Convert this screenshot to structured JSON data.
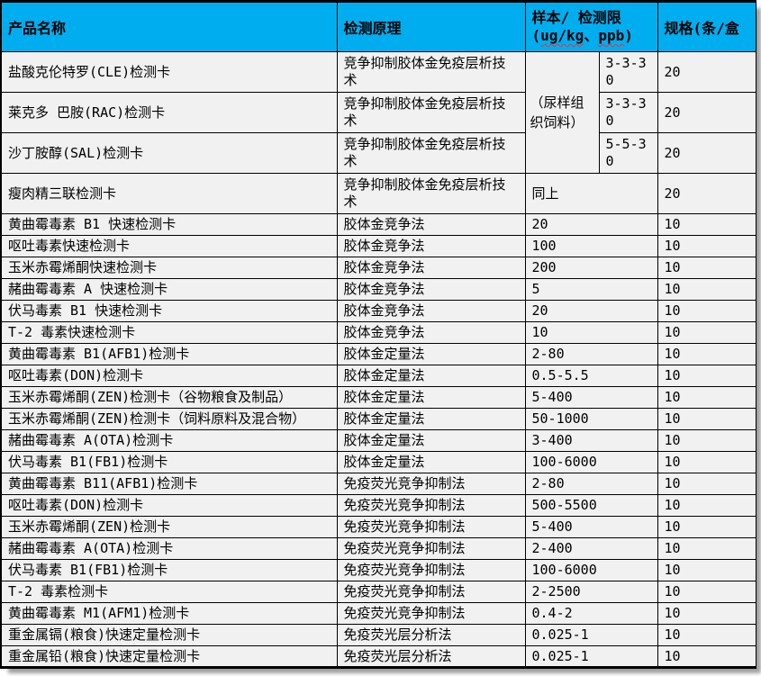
{
  "table": {
    "header": {
      "col1": "产品名称",
      "col2": "检测原理",
      "col3_line1": "样本/ 检测限",
      "col3_open": "(",
      "col3_unit1": "ug/kg",
      "col3_sep": "、",
      "col3_unit2": "ppb",
      "col3_close": ")",
      "col4": "规格(条/盒"
    },
    "colors": {
      "header_bg": "#00AEEF",
      "cell_bg": "#F1F1F1",
      "border": "#000000",
      "spellcheck_underline": "#FF2B2B"
    },
    "rows": [
      {
        "tall": true,
        "cells": [
          {
            "t": "盐酸克伦特罗(CLE)检测卡",
            "name": "product-name-cell"
          },
          {
            "t": "竞争抑制胶体金免疫层析技术",
            "name": "principle-cell"
          },
          {
            "t": "（尿样组织饲料）",
            "name": "sample-group-cell",
            "rowspan": 3
          },
          {
            "t": "3-3-30",
            "name": "limit-cell"
          },
          {
            "t": "20",
            "name": "spec-cell"
          }
        ]
      },
      {
        "tall": true,
        "cells": [
          {
            "t": "莱克多 巴胺(RAC)检测卡",
            "name": "product-name-cell"
          },
          {
            "t": "竞争抑制胶体金免疫层析技术",
            "name": "principle-cell"
          },
          {
            "t": "3-3-30",
            "name": "limit-cell"
          },
          {
            "t": "20",
            "name": "spec-cell"
          }
        ]
      },
      {
        "tall": true,
        "cells": [
          {
            "t": "沙丁胺醇(SAL)检测卡",
            "name": "product-name-cell"
          },
          {
            "t": "竞争抑制胶体金免疫层析技术",
            "name": "principle-cell"
          },
          {
            "t": "5-5-30",
            "name": "limit-cell"
          },
          {
            "t": "20",
            "name": "spec-cell"
          }
        ]
      },
      {
        "tall": true,
        "cells": [
          {
            "t": "瘦肉精三联检测卡",
            "name": "product-name-cell"
          },
          {
            "t": "竞争抑制胶体金免疫层析技术",
            "name": "principle-cell"
          },
          {
            "t": "同上",
            "name": "sample-cell",
            "colspan": 2
          },
          {
            "t": "20",
            "name": "spec-cell"
          }
        ]
      },
      {
        "cells": [
          {
            "t": "黄曲霉毒素 B1 快速检测卡",
            "name": "product-name-cell"
          },
          {
            "t": "胶体金竞争法",
            "name": "principle-cell"
          },
          {
            "t": "20",
            "name": "limit-cell",
            "colspan": 2
          },
          {
            "t": "10",
            "name": "spec-cell"
          }
        ]
      },
      {
        "cells": [
          {
            "t": "呕吐毒素快速检测卡",
            "name": "product-name-cell"
          },
          {
            "t": "胶体金竞争法",
            "name": "principle-cell"
          },
          {
            "t": "100",
            "name": "limit-cell",
            "colspan": 2
          },
          {
            "t": "10",
            "name": "spec-cell"
          }
        ]
      },
      {
        "cells": [
          {
            "t": "玉米赤霉烯酮快速检测卡",
            "name": "product-name-cell"
          },
          {
            "t": "胶体金竞争法",
            "name": "principle-cell"
          },
          {
            "t": "200",
            "name": "limit-cell",
            "colspan": 2
          },
          {
            "t": "10",
            "name": "spec-cell"
          }
        ]
      },
      {
        "cells": [
          {
            "t": "赭曲霉毒素 A 快速检测卡",
            "name": "product-name-cell"
          },
          {
            "t": "胶体金竞争法",
            "name": "principle-cell"
          },
          {
            "t": "5",
            "name": "limit-cell",
            "colspan": 2
          },
          {
            "t": "10",
            "name": "spec-cell"
          }
        ]
      },
      {
        "cells": [
          {
            "t": "伏马毒素 B1 快速检测卡",
            "name": "product-name-cell"
          },
          {
            "t": "胶体金竞争法",
            "name": "principle-cell"
          },
          {
            "t": "20",
            "name": "limit-cell",
            "colspan": 2
          },
          {
            "t": "10",
            "name": "spec-cell"
          }
        ]
      },
      {
        "cells": [
          {
            "t": "T-2 毒素快速检测卡",
            "name": "product-name-cell"
          },
          {
            "t": "胶体金竞争法",
            "name": "principle-cell"
          },
          {
            "t": "10",
            "name": "limit-cell",
            "colspan": 2
          },
          {
            "t": "10",
            "name": "spec-cell"
          }
        ]
      },
      {
        "cells": [
          {
            "t": "黄曲霉毒素 B1(AFB1)检测卡",
            "name": "product-name-cell"
          },
          {
            "t": "胶体金定量法",
            "name": "principle-cell"
          },
          {
            "t": "2-80",
            "name": "limit-cell",
            "colspan": 2
          },
          {
            "t": "10",
            "name": "spec-cell"
          }
        ]
      },
      {
        "cells": [
          {
            "t": "呕吐毒素(DON)检测卡",
            "name": "product-name-cell"
          },
          {
            "t": "胶体金定量法",
            "name": "principle-cell"
          },
          {
            "t": "0.5-5.5",
            "name": "limit-cell",
            "colspan": 2
          },
          {
            "t": "10",
            "name": "spec-cell"
          }
        ]
      },
      {
        "cells": [
          {
            "t": "玉米赤霉烯酮(ZEN)检测卡（谷物粮食及制品）",
            "name": "product-name-cell"
          },
          {
            "t": "胶体金定量法",
            "name": "principle-cell"
          },
          {
            "t": "5-400",
            "name": "limit-cell",
            "colspan": 2
          },
          {
            "t": "10",
            "name": "spec-cell"
          }
        ]
      },
      {
        "cells": [
          {
            "t": "玉米赤霉烯酮(ZEN)检测卡（饲料原料及混合物）",
            "name": "product-name-cell"
          },
          {
            "t": "胶体金定量法",
            "name": "principle-cell"
          },
          {
            "t": "50-1000",
            "name": "limit-cell",
            "colspan": 2
          },
          {
            "t": "10",
            "name": "spec-cell"
          }
        ]
      },
      {
        "cells": [
          {
            "t": "赭曲霉毒素 A(OTA)检测卡",
            "name": "product-name-cell"
          },
          {
            "t": "胶体金定量法",
            "name": "principle-cell"
          },
          {
            "t": "3-400",
            "name": "limit-cell",
            "colspan": 2
          },
          {
            "t": "10",
            "name": "spec-cell"
          }
        ]
      },
      {
        "cells": [
          {
            "t": "伏马毒素 B1(FB1)检测卡",
            "name": "product-name-cell"
          },
          {
            "t": "胶体金定量法",
            "name": "principle-cell"
          },
          {
            "t": "100-6000",
            "name": "limit-cell",
            "colspan": 2
          },
          {
            "t": "10",
            "name": "spec-cell"
          }
        ]
      },
      {
        "cells": [
          {
            "t": "黄曲霉毒素 B11(AFB1)检测卡",
            "name": "product-name-cell"
          },
          {
            "t": "免疫荧光竞争抑制法",
            "name": "principle-cell"
          },
          {
            "t": "2-80",
            "name": "limit-cell",
            "colspan": 2
          },
          {
            "t": "10",
            "name": "spec-cell"
          }
        ]
      },
      {
        "cells": [
          {
            "t": "呕吐毒素(DON)检测卡",
            "name": "product-name-cell"
          },
          {
            "t": "免疫荧光竞争抑制法",
            "name": "principle-cell"
          },
          {
            "t": "500-5500",
            "name": "limit-cell",
            "colspan": 2
          },
          {
            "t": "10",
            "name": "spec-cell"
          }
        ]
      },
      {
        "cells": [
          {
            "t": "玉米赤霉烯酮(ZEN)检测卡",
            "name": "product-name-cell"
          },
          {
            "t": "免疫荧光竞争抑制法",
            "name": "principle-cell"
          },
          {
            "t": "5-400",
            "name": "limit-cell",
            "colspan": 2
          },
          {
            "t": "10",
            "name": "spec-cell"
          }
        ]
      },
      {
        "cells": [
          {
            "t": "赭曲霉毒素 A(OTA)检测卡",
            "name": "product-name-cell"
          },
          {
            "t": "免疫荧光竞争抑制法",
            "name": "principle-cell"
          },
          {
            "t": "2-400",
            "name": "limit-cell",
            "colspan": 2
          },
          {
            "t": "10",
            "name": "spec-cell"
          }
        ]
      },
      {
        "cells": [
          {
            "t": "伏马毒素 B1(FB1)检测卡",
            "name": "product-name-cell"
          },
          {
            "t": "免疫荧光竞争抑制法",
            "name": "principle-cell"
          },
          {
            "t": "100-6000",
            "name": "limit-cell",
            "colspan": 2
          },
          {
            "t": "10",
            "name": "spec-cell"
          }
        ]
      },
      {
        "cells": [
          {
            "t": "T-2 毒素检测卡",
            "name": "product-name-cell"
          },
          {
            "t": "免疫荧光竞争抑制法",
            "name": "principle-cell"
          },
          {
            "t": "2-2500",
            "name": "limit-cell",
            "colspan": 2
          },
          {
            "t": "10",
            "name": "spec-cell"
          }
        ]
      },
      {
        "cells": [
          {
            "t": "黄曲霉毒素 M1(AFM1)检测卡",
            "name": "product-name-cell"
          },
          {
            "t": "免疫荧光竞争抑制法",
            "name": "principle-cell"
          },
          {
            "t": "0.4-2",
            "name": "limit-cell",
            "colspan": 2
          },
          {
            "t": "10",
            "name": "spec-cell"
          }
        ]
      },
      {
        "cells": [
          {
            "t": "重金属镉(粮食)快速定量检测卡",
            "name": "product-name-cell"
          },
          {
            "t": "免疫荧光层分析法",
            "name": "principle-cell"
          },
          {
            "t": "0.025-1",
            "name": "limit-cell",
            "colspan": 2
          },
          {
            "t": "10",
            "name": "spec-cell"
          }
        ]
      },
      {
        "cells": [
          {
            "t": "重金属铅(粮食)快速定量检测卡",
            "name": "product-name-cell"
          },
          {
            "t": "免疫荧光层分析法",
            "name": "principle-cell"
          },
          {
            "t": "0.025-1",
            "name": "limit-cell",
            "colspan": 2
          },
          {
            "t": "10",
            "name": "spec-cell"
          }
        ]
      }
    ]
  }
}
